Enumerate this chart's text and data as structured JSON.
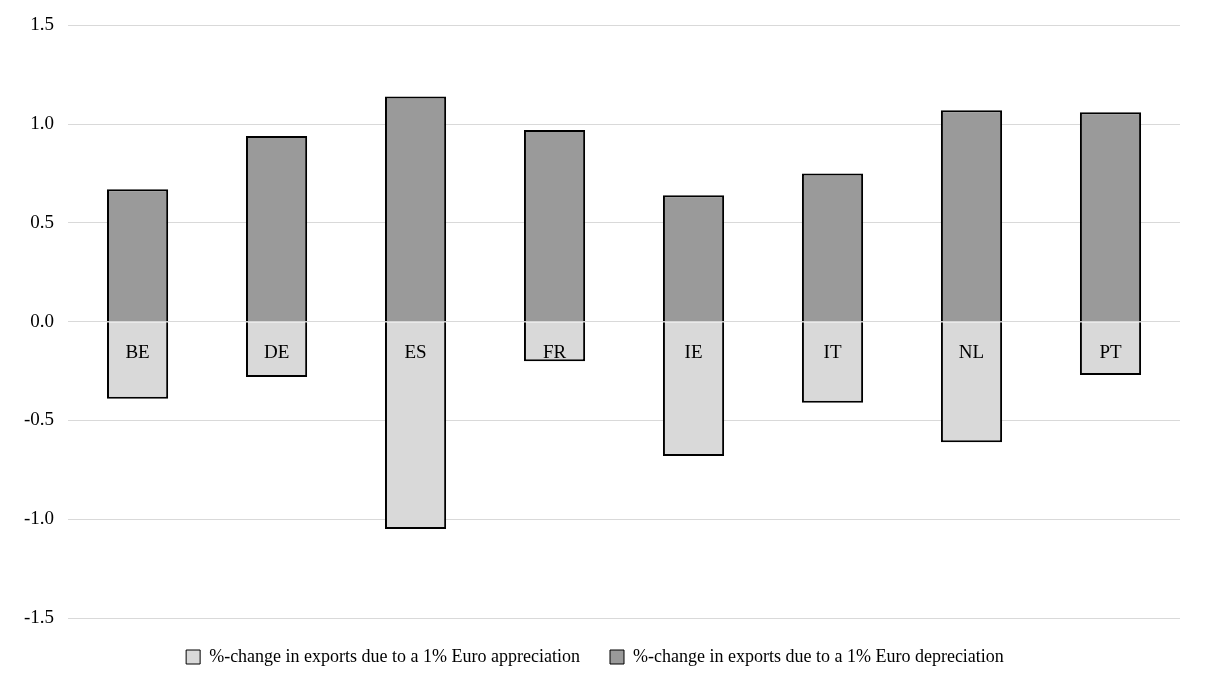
{
  "chart_data": {
    "type": "bar",
    "categories": [
      "BE",
      "DE",
      "ES",
      "FR",
      "IE",
      "IT",
      "NL",
      "PT"
    ],
    "series": [
      {
        "name": "%-change in exports due to a 1% Euro appreciation",
        "color": "#d9d9d9",
        "values": [
          -0.39,
          -0.28,
          -1.05,
          -0.2,
          -0.68,
          -0.41,
          -0.61,
          -0.27
        ]
      },
      {
        "name": "%-change in exports due to a 1% Euro depreciation",
        "color": "#9a9a9a",
        "values": [
          0.67,
          0.94,
          1.14,
          0.97,
          0.64,
          0.75,
          1.07,
          1.06
        ]
      }
    ],
    "ylim": [
      -1.5,
      1.5
    ],
    "yticks": [
      {
        "value": -1.5,
        "label": "-1.5"
      },
      {
        "value": -1,
        "label": "-1.0"
      },
      {
        "value": -0.5,
        "label": "-0.5"
      },
      {
        "value": 0,
        "label": "0.0"
      },
      {
        "value": 0.5,
        "label": "0.5"
      },
      {
        "value": 1,
        "label": "1.0"
      },
      {
        "value": 1.5,
        "label": "1.5"
      }
    ],
    "stacked": true,
    "grid": "y",
    "legend": "bottom"
  }
}
